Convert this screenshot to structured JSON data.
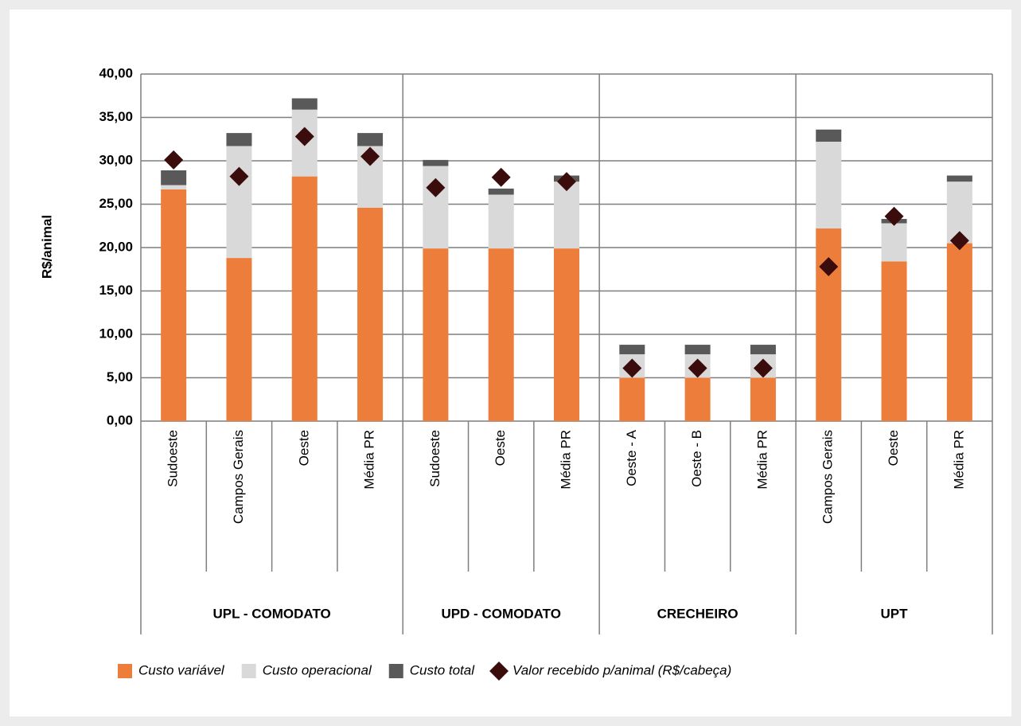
{
  "chart_data": {
    "type": "bar",
    "stacked": true,
    "y_label": "R$/animal",
    "groups": [
      {
        "label": "UPL - COMODATO",
        "categories": [
          "Sudoeste",
          "Campos Gerais",
          "Oeste",
          "Média PR"
        ]
      },
      {
        "label": "UPD - COMODATO",
        "categories": [
          "Sudoeste",
          "Oeste",
          "Média PR"
        ]
      },
      {
        "label": "CRECHEIRO",
        "categories": [
          "Oeste - A",
          "Oeste - B",
          "Média PR"
        ]
      },
      {
        "label": "UPT",
        "categories": [
          "Campos Gerais",
          "Oeste",
          "Média PR"
        ]
      }
    ],
    "series": [
      {
        "name": "Custo variável",
        "color": "#ed7d3a",
        "values": [
          26.7,
          18.8,
          28.2,
          24.6,
          19.9,
          19.9,
          19.9,
          5.0,
          5.0,
          5.0,
          22.2,
          18.4,
          20.5
        ]
      },
      {
        "name": "Custo operacional",
        "color": "#d9d9d9",
        "values": [
          0.5,
          12.9,
          7.7,
          7.1,
          9.5,
          6.2,
          7.7,
          2.7,
          2.7,
          2.7,
          10.0,
          4.4,
          7.1
        ]
      },
      {
        "name": "Custo total",
        "color": "#595959",
        "values": [
          1.7,
          1.5,
          1.3,
          1.5,
          0.7,
          0.7,
          0.7,
          1.1,
          1.1,
          1.1,
          1.4,
          0.5,
          0.7
        ]
      },
      {
        "name": "Valor recebido p/animal (R$/cabeça)",
        "color": "#3a0c0c",
        "type": "marker",
        "values": [
          30.1,
          28.2,
          32.8,
          30.5,
          26.9,
          28.1,
          27.6,
          6.1,
          6.1,
          6.1,
          17.8,
          23.6,
          20.8
        ]
      }
    ],
    "ylim": [
      0,
      40
    ],
    "yticks": [
      {
        "value": 0,
        "label": "0,00"
      },
      {
        "value": 5,
        "label": "5,00"
      },
      {
        "value": 10,
        "label": "10,00"
      },
      {
        "value": 15,
        "label": "15,00"
      },
      {
        "value": 20,
        "label": "20,00"
      },
      {
        "value": 25,
        "label": "25,00"
      },
      {
        "value": 30,
        "label": "30,00"
      },
      {
        "value": 35,
        "label": "35,00"
      },
      {
        "value": 40,
        "label": "40,00"
      }
    ],
    "grid": true
  }
}
